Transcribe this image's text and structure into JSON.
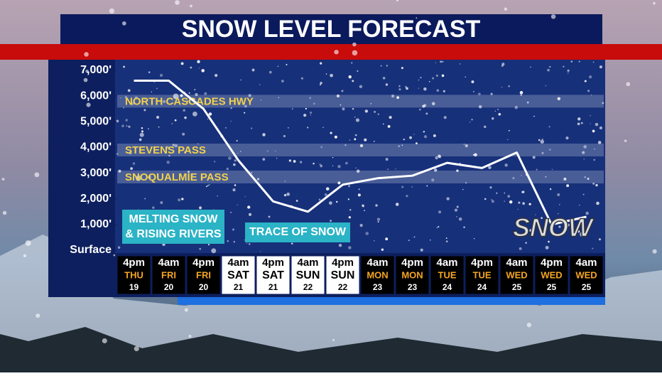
{
  "chart_data": {
    "type": "line",
    "title": "SNOW LEVEL FORECAST",
    "categories": [
      "4pm",
      "4am",
      "4pm",
      "4am",
      "4pm",
      "4am",
      "4pm",
      "4am",
      "4pm",
      "4am",
      "4pm",
      "4am",
      "4pm",
      "4am"
    ],
    "days": [
      "THU",
      "FRI",
      "FRI",
      "SAT",
      "SAT",
      "SUN",
      "SUN",
      "MON",
      "MON",
      "TUE",
      "TUE",
      "WED",
      "WED",
      "WED"
    ],
    "dates": [
      "19",
      "20",
      "20",
      "21",
      "21",
      "22",
      "22",
      "23",
      "23",
      "24",
      "24",
      "25",
      "25",
      "25"
    ],
    "values": [
      6600,
      6600,
      5500,
      3500,
      1900,
      1500,
      2550,
      2800,
      2900,
      3400,
      3200,
      3800,
      1000,
      1300
    ],
    "color": "#ffffff",
    "ylim": [
      0,
      7000
    ],
    "yticks": [
      {
        "value": 0,
        "label": "Surface"
      },
      {
        "value": 1000,
        "label": "1,000'"
      },
      {
        "value": 2000,
        "label": "2,000'"
      },
      {
        "value": 3000,
        "label": "3,000'"
      },
      {
        "value": 4000,
        "label": "4,000'"
      },
      {
        "value": 5000,
        "label": "5,000'"
      },
      {
        "value": 6000,
        "label": "6,000'"
      },
      {
        "value": 7000,
        "label": "7,000'"
      }
    ],
    "reference_levels": [
      {
        "label": "NORTH CASCADES HWY",
        "value": 5800
      },
      {
        "label": "STEVENS PASS",
        "value": 3900
      },
      {
        "label": "SNOQUALMIE PASS",
        "value": 2850
      }
    ],
    "notes": [
      "MELTING SNOW",
      "& RISING RIVERS",
      "TRACE OF SNOW"
    ],
    "logo": "SNOW"
  }
}
